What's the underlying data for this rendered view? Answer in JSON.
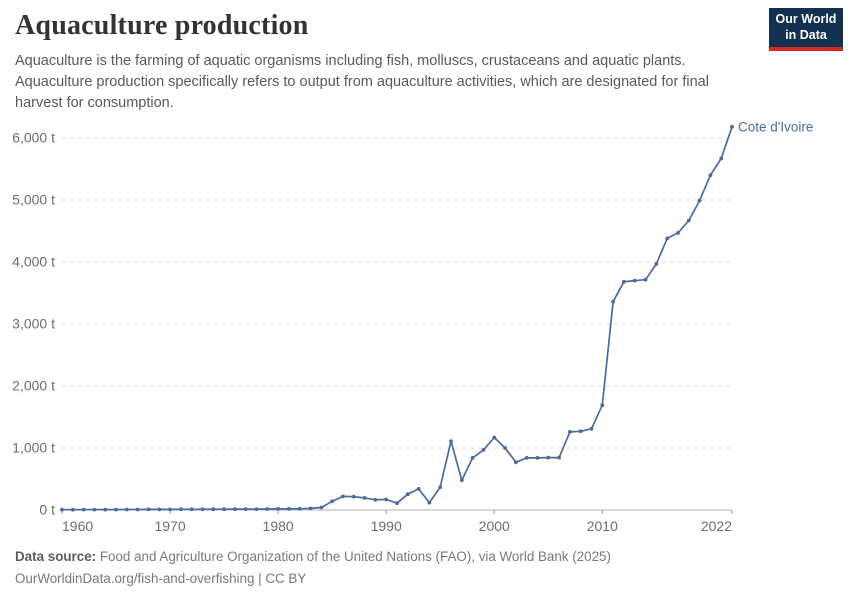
{
  "header": {
    "title": "Aquaculture production",
    "subtitle": "Aquaculture is the farming of aquatic organisms including fish, molluscs, crustaceans and aquatic plants. Aquaculture production specifically refers to output from aquaculture activities, which are designated for final harvest for consumption."
  },
  "logo": {
    "line1": "Our World",
    "line2": "in Data",
    "bg_color": "#12304f",
    "accent_color": "#d42b21"
  },
  "footer": {
    "source_label": "Data source:",
    "source_text": " Food and Agriculture Organization of the United Nations (FAO), via World Bank (2025)",
    "link_text": "OurWorldinData.org/fish-and-overfishing",
    "separator": " | ",
    "license": "CC BY"
  },
  "chart_data": {
    "type": "line",
    "title": "Aquaculture production",
    "entity_label": "Cote d'Ivoire",
    "unit": "t",
    "line_color": "#4c6a9c",
    "grid_color": "#dddddd",
    "axis_line_color": "#b3b3b3",
    "tick_text_color": "#6e6e6e",
    "xlim": [
      1960,
      2022
    ],
    "ylim": [
      0,
      6000
    ],
    "grid": true,
    "legend_position": "end-of-line-label",
    "y_ticks": [
      {
        "value": 0,
        "label": "0 t"
      },
      {
        "value": 1000,
        "label": "1,000 t"
      },
      {
        "value": 2000,
        "label": "2,000 t"
      },
      {
        "value": 3000,
        "label": "3,000 t"
      },
      {
        "value": 4000,
        "label": "4,000 t"
      },
      {
        "value": 5000,
        "label": "5,000 t"
      },
      {
        "value": 6000,
        "label": "6,000 t"
      }
    ],
    "x_ticks": [
      {
        "year": 1960,
        "label": "1960"
      },
      {
        "year": 1970,
        "label": "1970"
      },
      {
        "year": 1980,
        "label": "1980"
      },
      {
        "year": 1990,
        "label": "1990"
      },
      {
        "year": 2000,
        "label": "2000"
      },
      {
        "year": 2010,
        "label": "2010"
      },
      {
        "year": 2022,
        "label": "2022"
      }
    ],
    "series": [
      {
        "name": "Cote d'Ivoire",
        "points": [
          {
            "year": 1960,
            "value": 5
          },
          {
            "year": 1961,
            "value": 5
          },
          {
            "year": 1962,
            "value": 6
          },
          {
            "year": 1963,
            "value": 6
          },
          {
            "year": 1964,
            "value": 7
          },
          {
            "year": 1965,
            "value": 7
          },
          {
            "year": 1966,
            "value": 8
          },
          {
            "year": 1967,
            "value": 8
          },
          {
            "year": 1968,
            "value": 9
          },
          {
            "year": 1969,
            "value": 10
          },
          {
            "year": 1970,
            "value": 10
          },
          {
            "year": 1971,
            "value": 11
          },
          {
            "year": 1972,
            "value": 12
          },
          {
            "year": 1973,
            "value": 12
          },
          {
            "year": 1974,
            "value": 13
          },
          {
            "year": 1975,
            "value": 13
          },
          {
            "year": 1976,
            "value": 14
          },
          {
            "year": 1977,
            "value": 15
          },
          {
            "year": 1978,
            "value": 15
          },
          {
            "year": 1979,
            "value": 16
          },
          {
            "year": 1980,
            "value": 17
          },
          {
            "year": 1981,
            "value": 18
          },
          {
            "year": 1982,
            "value": 19
          },
          {
            "year": 1983,
            "value": 25
          },
          {
            "year": 1984,
            "value": 40
          },
          {
            "year": 1985,
            "value": 140
          },
          {
            "year": 1986,
            "value": 220
          },
          {
            "year": 1987,
            "value": 215
          },
          {
            "year": 1988,
            "value": 195
          },
          {
            "year": 1989,
            "value": 165
          },
          {
            "year": 1990,
            "value": 170
          },
          {
            "year": 1991,
            "value": 110
          },
          {
            "year": 1992,
            "value": 255
          },
          {
            "year": 1993,
            "value": 340
          },
          {
            "year": 1994,
            "value": 120
          },
          {
            "year": 1995,
            "value": 370
          },
          {
            "year": 1996,
            "value": 1110
          },
          {
            "year": 1997,
            "value": 480
          },
          {
            "year": 1998,
            "value": 840
          },
          {
            "year": 1999,
            "value": 970
          },
          {
            "year": 2000,
            "value": 1170
          },
          {
            "year": 2001,
            "value": 1000
          },
          {
            "year": 2002,
            "value": 770
          },
          {
            "year": 2003,
            "value": 840
          },
          {
            "year": 2004,
            "value": 840
          },
          {
            "year": 2005,
            "value": 845
          },
          {
            "year": 2006,
            "value": 845
          },
          {
            "year": 2007,
            "value": 1260
          },
          {
            "year": 2008,
            "value": 1270
          },
          {
            "year": 2009,
            "value": 1310
          },
          {
            "year": 2010,
            "value": 1690
          },
          {
            "year": 2011,
            "value": 3360
          },
          {
            "year": 2012,
            "value": 3680
          },
          {
            "year": 2013,
            "value": 3700
          },
          {
            "year": 2014,
            "value": 3715
          },
          {
            "year": 2015,
            "value": 3970
          },
          {
            "year": 2016,
            "value": 4380
          },
          {
            "year": 2017,
            "value": 4470
          },
          {
            "year": 2018,
            "value": 4670
          },
          {
            "year": 2019,
            "value": 4990
          },
          {
            "year": 2020,
            "value": 5400
          },
          {
            "year": 2021,
            "value": 5670
          },
          {
            "year": 2022,
            "value": 6180
          }
        ]
      }
    ]
  }
}
